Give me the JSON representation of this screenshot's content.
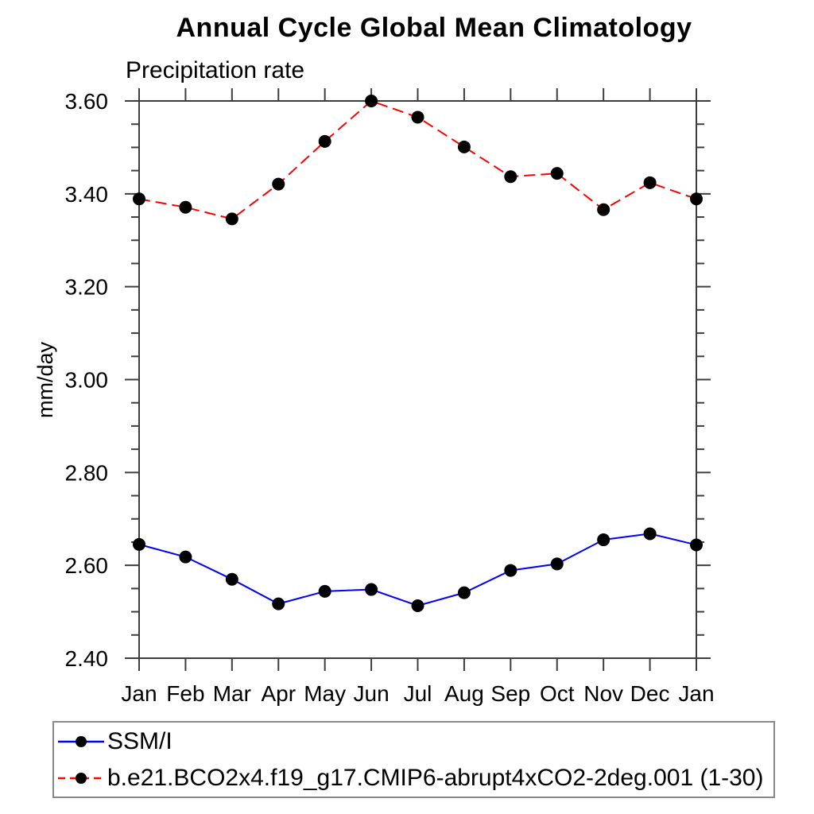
{
  "chart_data": {
    "type": "line",
    "title": "Annual Cycle Global Mean Climatology",
    "subtitle": "Precipitation rate",
    "ylabel": "mm/day",
    "categories": [
      "Jan",
      "Feb",
      "Mar",
      "Apr",
      "May",
      "Jun",
      "Jul",
      "Aug",
      "Sep",
      "Oct",
      "Nov",
      "Dec",
      "Jan"
    ],
    "ylim": [
      2.4,
      3.6
    ],
    "ytick_major_step": 0.2,
    "ytick_minor_step": 0.05,
    "ytick_labels": [
      "2.40",
      "2.60",
      "2.80",
      "3.00",
      "3.20",
      "3.40",
      "3.60"
    ],
    "grid": false,
    "legend_position": "bottom",
    "frame_color": "#3d3d3d",
    "marker_color": "#000000",
    "series": [
      {
        "name": "SSM/I",
        "color": "#0000ff",
        "style": "solid",
        "marker": "circle",
        "values": [
          2.645,
          2.618,
          2.57,
          2.517,
          2.544,
          2.548,
          2.513,
          2.541,
          2.589,
          2.603,
          2.655,
          2.668,
          2.644
        ]
      },
      {
        "name": "b.e21.BCO2x4.f19_g17.CMIP6-abrupt4xCO2-2deg.001 (1-30)",
        "color": "#ff0000",
        "style": "dashed",
        "marker": "circle",
        "values": [
          3.389,
          3.371,
          3.346,
          3.421,
          3.513,
          3.6,
          3.565,
          3.501,
          3.437,
          3.444,
          3.366,
          3.424,
          3.389
        ]
      }
    ]
  }
}
